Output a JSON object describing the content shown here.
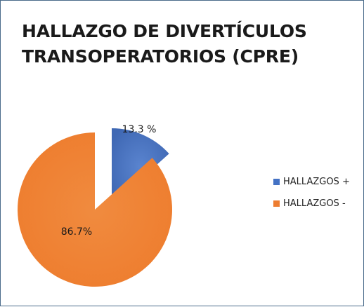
{
  "chart_data": {
    "type": "pie",
    "title_lines": [
      "HALLAZGO DE DIVERTÍCULOS",
      "TRANSOPERATORIOS (CPRE)"
    ],
    "slices": [
      {
        "name": "HALLAZGOS +",
        "value": 13.3,
        "label": "13.3 %",
        "color": "#4472c4",
        "exploded": true
      },
      {
        "name": "HALLAZGOS -",
        "value": 86.7,
        "label": "86.7%",
        "color": "#ed7d31",
        "exploded": false
      }
    ],
    "legend_position": "right"
  }
}
